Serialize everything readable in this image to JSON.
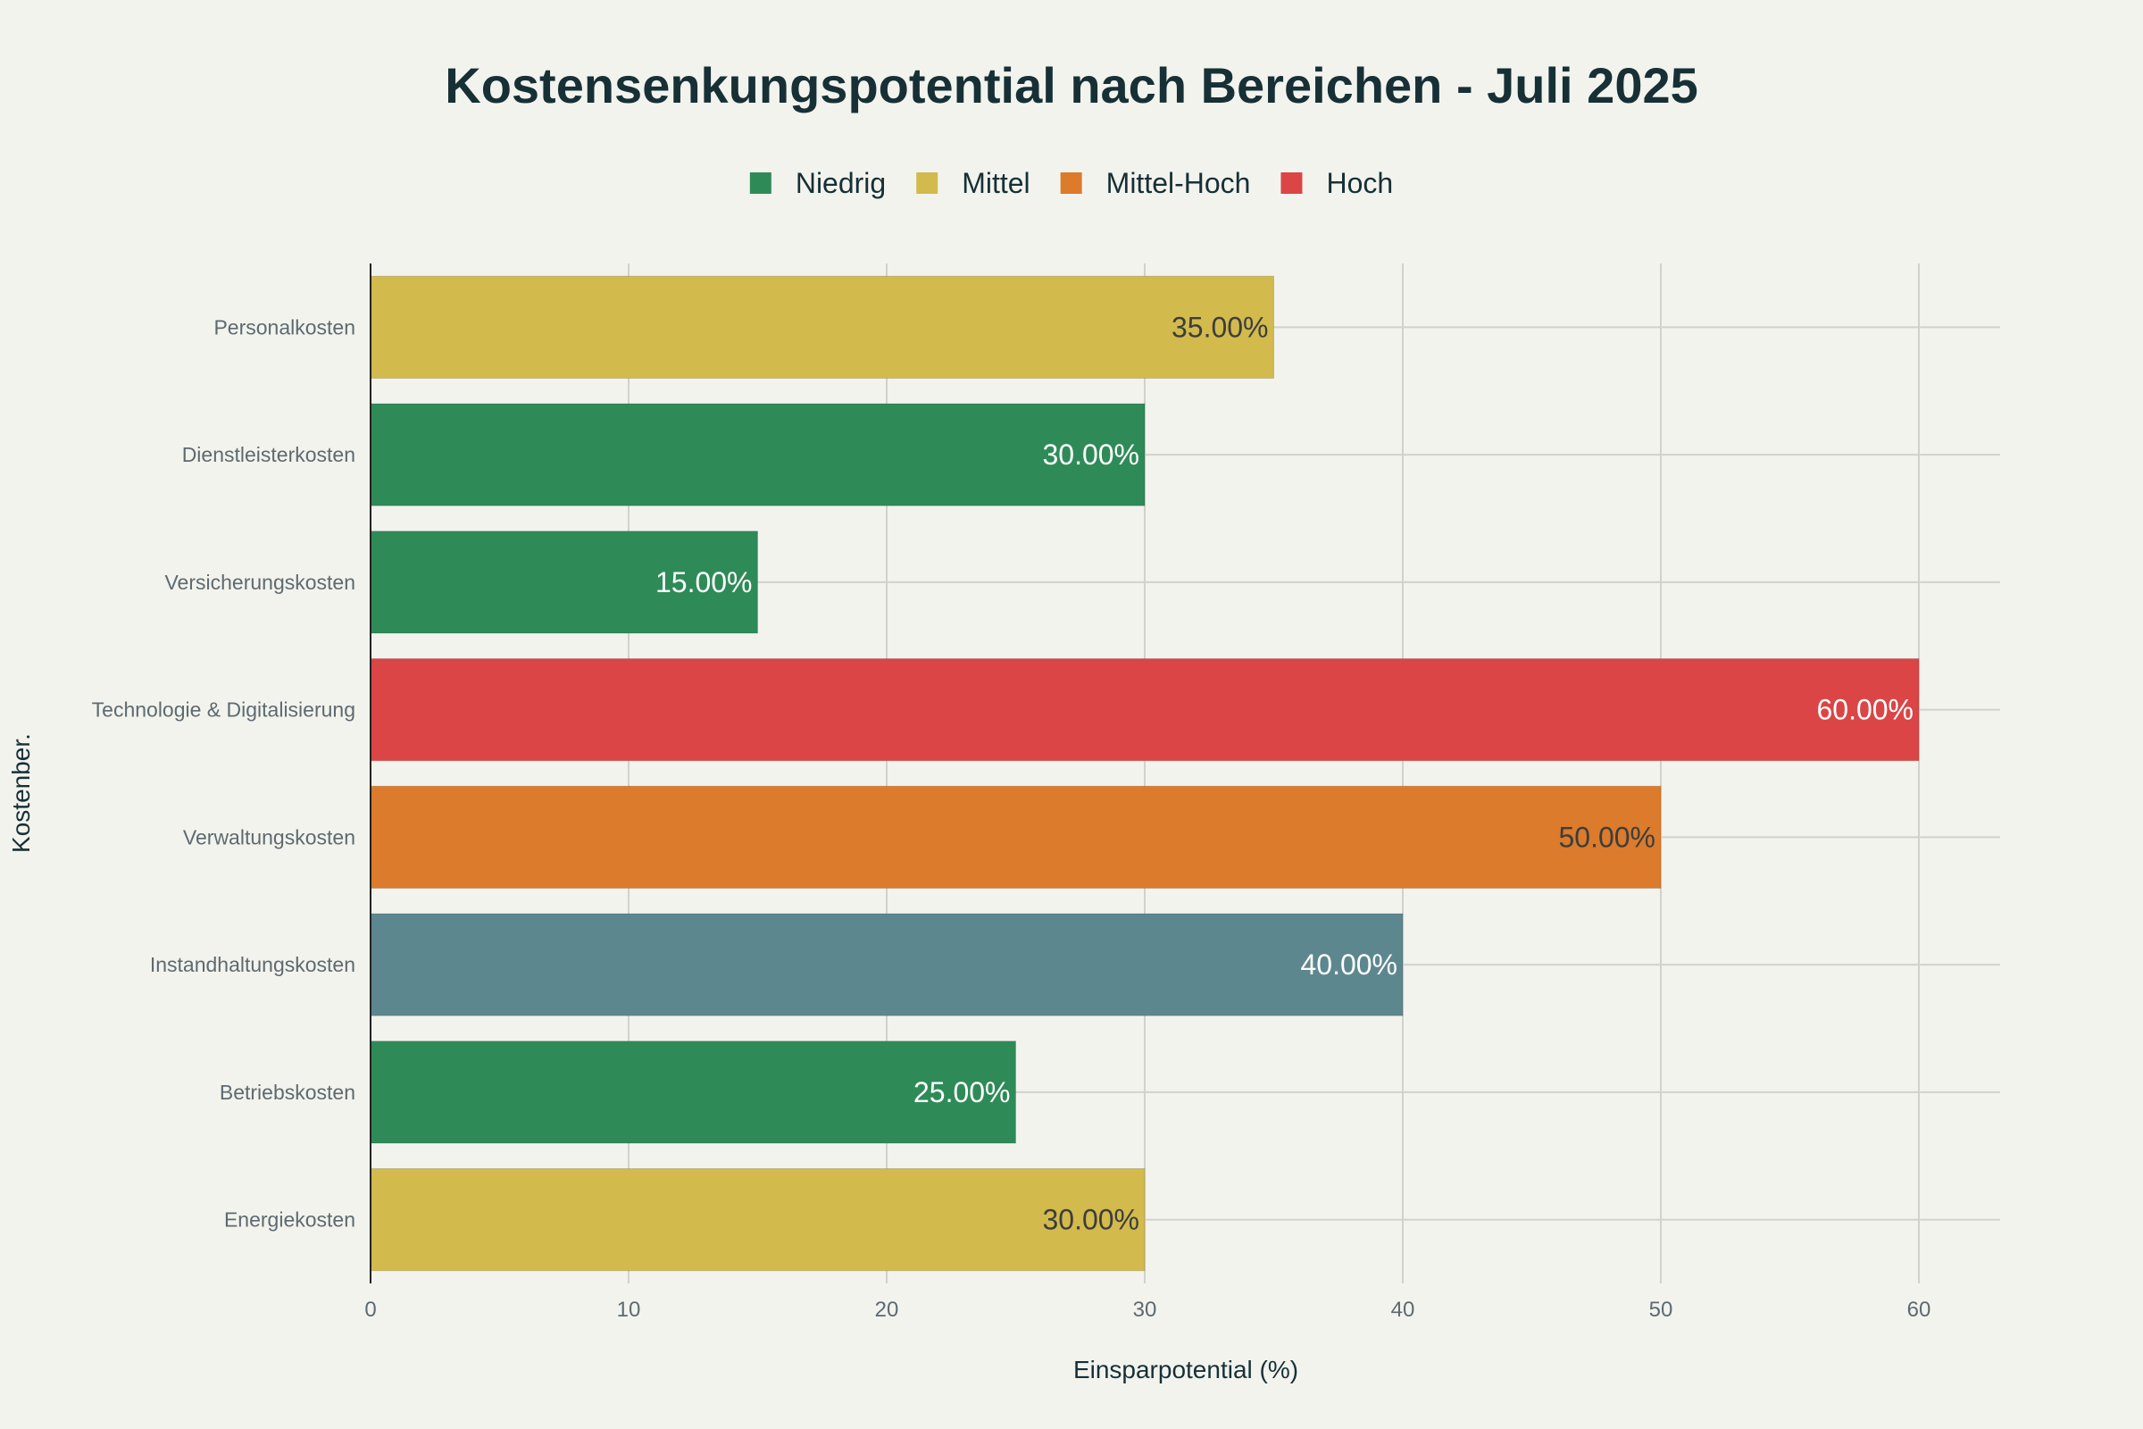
{
  "chart_data": {
    "type": "bar",
    "orientation": "horizontal",
    "title": "Kostensenkungspotential nach Bereichen - Juli 2025",
    "xlabel": "Einsparpotential (%)",
    "ylabel": "Kostenber.",
    "xlim": [
      0,
      63
    ],
    "xticks": [
      0,
      10,
      20,
      30,
      40,
      50,
      60
    ],
    "xtick_labels": [
      "0",
      "10",
      "20",
      "30",
      "40",
      "50",
      "60"
    ],
    "grid": true,
    "legend_position": "top-center",
    "legend": [
      {
        "name": "Niedrig",
        "color": "#2e8b57"
      },
      {
        "name": "Mittel",
        "color": "#d2ba4c"
      },
      {
        "name": "Mittel-Hoch",
        "color": "#db7b2b"
      },
      {
        "name": "Hoch",
        "color": "#db4545"
      }
    ],
    "categories": [
      "Personalkosten",
      "Dienstleisterkosten",
      "Versicherungskosten",
      "Technologie & Digitalisierung",
      "Verwaltungskosten",
      "Instandhaltungskosten",
      "Betriebskosten",
      "Energiekosten"
    ],
    "values": [
      35,
      30,
      15,
      60,
      50,
      40,
      25,
      30
    ],
    "value_labels": [
      "35.00%",
      "30.00%",
      "15.00%",
      "60.00%",
      "50.00%",
      "40.00%",
      "25.00%",
      "30.00%"
    ],
    "bar_colors": [
      "#d2ba4c",
      "#2e8b57",
      "#2e8b57",
      "#db4545",
      "#db7b2b",
      "#5d878f",
      "#2e8b57",
      "#d2ba4c"
    ],
    "label_colors": [
      "#3d3d3d",
      "#ffffff",
      "#ffffff",
      "#ffffff",
      "#3d3d3d",
      "#ffffff",
      "#ffffff",
      "#3d3d3d"
    ]
  }
}
